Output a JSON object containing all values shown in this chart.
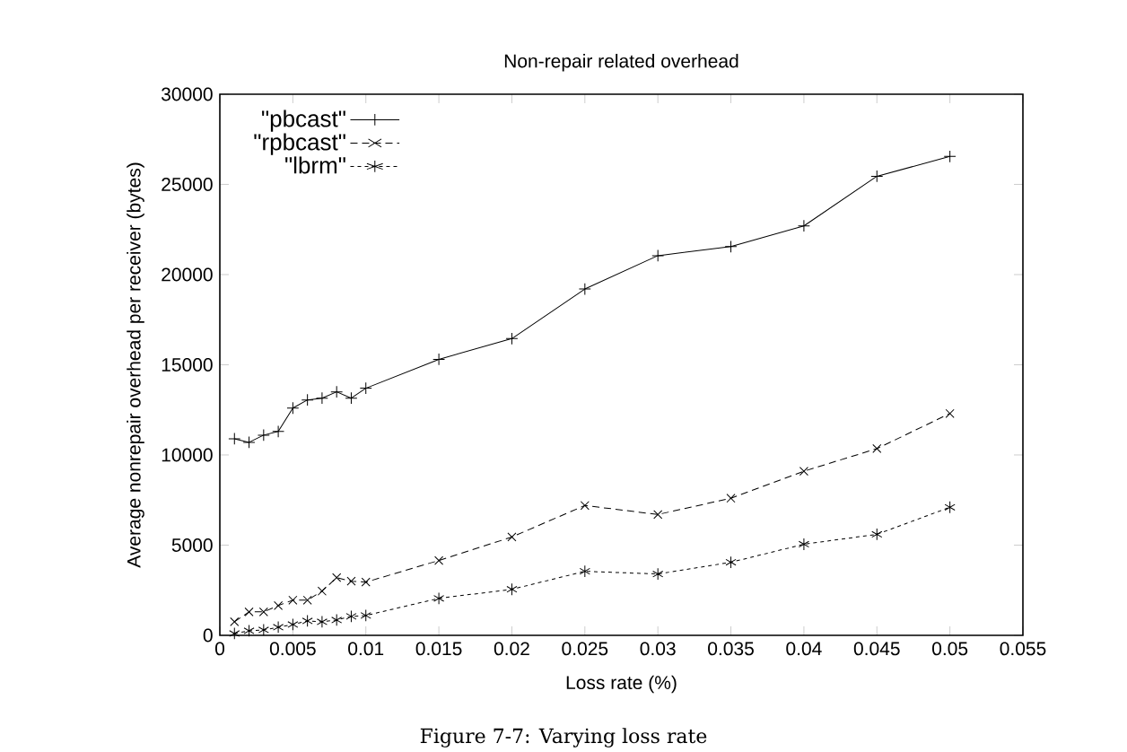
{
  "chart_data": {
    "type": "line",
    "title": "Non-repair related overhead",
    "xlabel": "Loss rate (%)",
    "ylabel": "Average nonrepair overhead per receiver (bytes)",
    "x": [
      0.001,
      0.002,
      0.003,
      0.004,
      0.005,
      0.006,
      0.007,
      0.008,
      0.009,
      0.01,
      0.015,
      0.02,
      0.025,
      0.03,
      0.035,
      0.04,
      0.045,
      0.05
    ],
    "series": [
      {
        "name": "\"pbcast\"",
        "color": "#000000",
        "marker": "cross",
        "line_style": "solid",
        "values": [
          10900,
          10700,
          11100,
          11300,
          12600,
          13050,
          13150,
          13500,
          13150,
          13700,
          15300,
          16450,
          19200,
          21050,
          21550,
          22700,
          25450,
          26550
        ]
      },
      {
        "name": "\"rpbcast\"",
        "color": "#000000",
        "marker": "cross",
        "line_style": "dashed",
        "values": [
          750,
          1300,
          1300,
          1650,
          1950,
          1950,
          2450,
          3200,
          3000,
          2950,
          4150,
          5450,
          7200,
          6700,
          7600,
          9100,
          10350,
          12300
        ]
      },
      {
        "name": "\"lbrm\"",
        "color": "#000000",
        "marker": "cross",
        "line_style": "dotted",
        "values": [
          100,
          250,
          300,
          450,
          600,
          800,
          750,
          850,
          1050,
          1100,
          2050,
          2550,
          3550,
          3400,
          4050,
          5050,
          5600,
          7100
        ]
      }
    ],
    "xlim": [
      0,
      0.055
    ],
    "ylim": [
      0,
      30000
    ],
    "xticks": [
      0,
      0.005,
      0.01,
      0.015,
      0.02,
      0.025,
      0.03,
      0.035,
      0.04,
      0.045,
      0.05,
      0.055
    ],
    "yticks": [
      0,
      5000,
      10000,
      15000,
      20000,
      25000,
      30000
    ],
    "grid": false,
    "legend": "top left",
    "annotations": [
      "Figure 7-7: Varying loss rate"
    ]
  }
}
